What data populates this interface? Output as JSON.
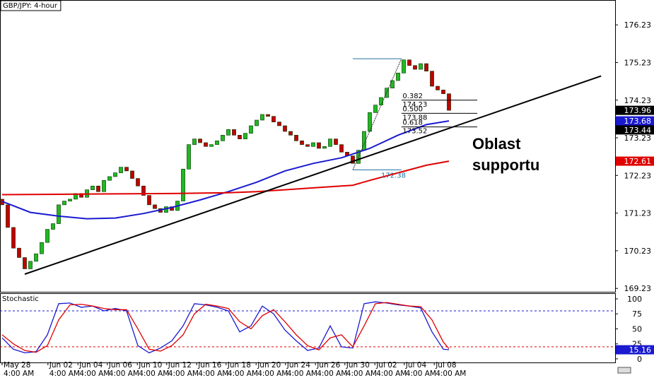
{
  "chart_data": [
    {
      "type": "candlestick",
      "title": "GBP/JPY: 4-hour",
      "xlim": [
        -0.375,
        108.375
      ],
      "ylim": [
        169.14,
        176.89
      ],
      "yticks": [
        169.23,
        170.23,
        171.23,
        172.23,
        173.23,
        174.23,
        175.23,
        176.23
      ],
      "up_color": "#22b822",
      "down_color": "#c00000",
      "open": [
        171.6,
        171.45,
        170.85,
        170.3,
        170.05,
        169.75,
        169.95,
        170.15,
        170.45,
        170.8,
        170.95,
        171.45,
        171.55,
        171.6,
        171.75,
        171.65,
        171.85,
        171.95,
        171.8,
        172.1,
        172.2,
        172.3,
        172.45,
        172.35,
        172.15,
        171.95,
        171.7,
        171.45,
        171.35,
        171.25,
        171.4,
        171.3,
        171.55,
        172.4,
        173.05,
        173.2,
        173.1,
        173.0,
        173.05,
        173.15,
        173.3,
        173.45,
        173.3,
        173.2,
        173.35,
        173.55,
        173.7,
        173.85,
        173.8,
        173.65,
        173.55,
        173.4,
        173.3,
        173.15,
        173.05,
        173.0,
        173.1,
        172.95,
        173.0,
        173.2,
        173.05,
        172.85,
        172.75,
        172.55,
        172.9,
        173.4,
        173.9,
        174.1,
        174.3,
        174.55,
        174.75,
        174.95,
        175.3,
        175.15,
        175.05,
        175.2,
        175.0,
        174.6,
        174.5,
        174.4
      ],
      "close": [
        171.45,
        170.85,
        170.3,
        170.05,
        169.75,
        169.95,
        170.15,
        170.45,
        170.8,
        170.95,
        171.45,
        171.55,
        171.6,
        171.75,
        171.65,
        171.85,
        171.95,
        171.8,
        172.1,
        172.2,
        172.3,
        172.45,
        172.35,
        172.15,
        171.95,
        171.7,
        171.45,
        171.35,
        171.25,
        171.4,
        171.3,
        171.55,
        172.4,
        173.05,
        173.2,
        173.1,
        173.0,
        173.05,
        173.15,
        173.3,
        173.45,
        173.3,
        173.2,
        173.35,
        173.55,
        173.7,
        173.85,
        173.8,
        173.65,
        173.55,
        173.4,
        173.3,
        173.15,
        173.05,
        173.0,
        173.1,
        172.95,
        173.0,
        173.2,
        173.05,
        172.85,
        172.75,
        172.55,
        172.9,
        173.4,
        173.9,
        174.1,
        174.3,
        174.55,
        174.75,
        174.95,
        175.3,
        175.15,
        175.05,
        175.2,
        175.0,
        174.6,
        174.5,
        174.4,
        173.96
      ],
      "series": [
        {
          "color": "#1a1ad0",
          "x": [
            0,
            5,
            10,
            15,
            20,
            25,
            30,
            35,
            40,
            45,
            50,
            55,
            60,
            65,
            70,
            75,
            79
          ],
          "values": [
            171.54,
            171.25,
            171.15,
            171.08,
            171.1,
            171.22,
            171.38,
            171.58,
            171.8,
            172.05,
            172.35,
            172.55,
            172.7,
            172.95,
            173.3,
            173.58,
            173.68
          ]
        },
        {
          "color": "#e00000",
          "x": [
            0,
            10,
            20,
            30,
            40,
            45,
            50,
            55,
            60,
            62,
            65,
            70,
            75,
            79
          ],
          "values": [
            171.72,
            171.73,
            171.74,
            171.75,
            171.77,
            171.8,
            171.85,
            171.9,
            171.95,
            171.97,
            172.1,
            172.3,
            172.5,
            172.61
          ]
        }
      ],
      "trendline": {
        "x": [
          4,
          105.9
        ],
        "values": [
          169.61,
          174.87
        ]
      },
      "fibonacci": {
        "high": 175.33,
        "low": 172.38,
        "levels": [
          {
            "ratio": "0.382",
            "price": 174.23
          },
          {
            "ratio": "0.500",
            "price": 173.88
          },
          {
            "ratio": "0.618",
            "price": 173.52
          }
        ]
      },
      "price_markers": [
        {
          "value": 173.96,
          "color": "#000000"
        },
        {
          "value": 173.68,
          "color": "#1a1ad0"
        },
        {
          "value": 173.44,
          "color": "#000000"
        },
        {
          "value": 172.61,
          "color": "#e00000"
        }
      ],
      "annotation": [
        "Oblast",
        "supportu"
      ]
    },
    {
      "type": "line",
      "title": "Stochastic",
      "xlim": [
        -0.375,
        108.375
      ],
      "ylim": [
        -6,
        109.4
      ],
      "yticks": [
        0,
        25,
        50,
        75,
        100
      ],
      "levels": [
        {
          "value": 80,
          "color": "#1a1ad0"
        },
        {
          "value": 20,
          "color": "#e00000"
        }
      ],
      "xticks": [
        {
          "value": 0,
          "label": "May 28"
        },
        {
          "value": 8.1,
          "label": "Jun 02"
        },
        {
          "value": 13.4,
          "label": "Jun 04"
        },
        {
          "value": 18.6,
          "label": "Jun 06"
        },
        {
          "value": 23.9,
          "label": "Jun 10"
        },
        {
          "value": 29.1,
          "label": "Jun 12"
        },
        {
          "value": 34.4,
          "label": "Jun 16"
        },
        {
          "value": 39.6,
          "label": "Jun 18"
        },
        {
          "value": 44.9,
          "label": "Jun 20"
        },
        {
          "value": 50.1,
          "label": "Jun 24"
        },
        {
          "value": 55.4,
          "label": "Jun 26"
        },
        {
          "value": 60.6,
          "label": "Jun 30"
        },
        {
          "value": 65.9,
          "label": "Jul 02"
        },
        {
          "value": 71.1,
          "label": "Jul 04"
        },
        {
          "value": 76.4,
          "label": "Jul 08"
        }
      ],
      "xtick_times": [
        "4:00 AM",
        "4:00 AM",
        "4:00 AM",
        "4:00 AM",
        "4:00 AM",
        "4:00 AM",
        "4:00 AM",
        "4:00 AM",
        "4:00 AM",
        "4:00 AM",
        "4:00 AM",
        "4:00 AM",
        "4:00 AM",
        "4:00 AM",
        "4:00 AM"
      ],
      "x": [
        0,
        2,
        4,
        6,
        8,
        10,
        12,
        14,
        16,
        18,
        20,
        22,
        24,
        26,
        28,
        30,
        32,
        34,
        36,
        38,
        40,
        42,
        44,
        46,
        48,
        50,
        52,
        54,
        56,
        58,
        60,
        62,
        64,
        66,
        68,
        70,
        72,
        74,
        76,
        78,
        79
      ],
      "series": [
        {
          "color": "#1a1ad0",
          "values": [
            35,
            16,
            10,
            12,
            40,
            92,
            93,
            86,
            88,
            80,
            84,
            80,
            22,
            10,
            18,
            30,
            55,
            92,
            90,
            86,
            80,
            45,
            55,
            88,
            75,
            48,
            30,
            14,
            18,
            55,
            20,
            18,
            92,
            95,
            93,
            90,
            88,
            85,
            45,
            16,
            15.16
          ]
        },
        {
          "color": "#e00000",
          "values": [
            40,
            25,
            14,
            11,
            22,
            65,
            90,
            91,
            88,
            84,
            82,
            82,
            50,
            16,
            13,
            22,
            40,
            75,
            91,
            88,
            84,
            62,
            50,
            72,
            82,
            62,
            40,
            22,
            15,
            35,
            40,
            20,
            55,
            92,
            94,
            91,
            88,
            87,
            65,
            28,
            17
          ]
        }
      ],
      "price_markers": [
        {
          "value": 15.16,
          "color": "#1a1ad0"
        }
      ]
    }
  ]
}
